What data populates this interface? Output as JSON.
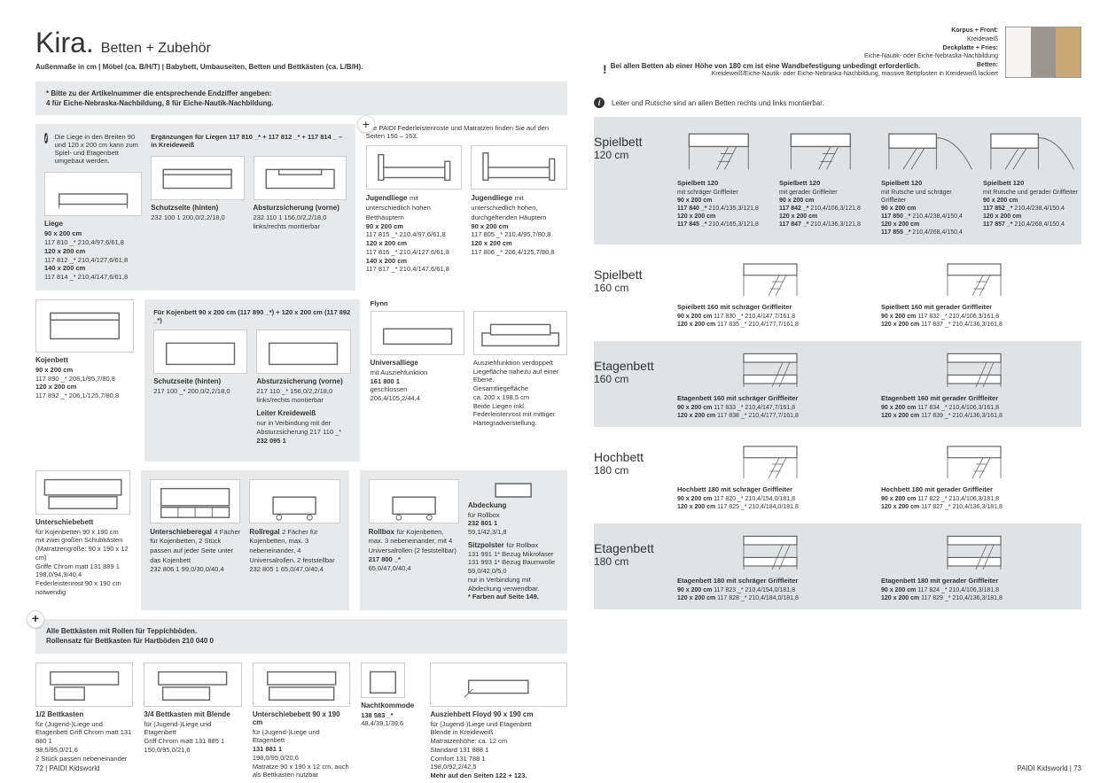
{
  "header": {
    "title": "Kira.",
    "subtitle": "Betten + Zubehör",
    "note": "Außenmaße in cm | Möbel (ca. B/H/T) | Babybett, Umbauseiten, Betten und Bettkästen (ca. L/B/H)."
  },
  "warning": "Bei allen Betten ab einer Höhe von 180 cm ist eine Wandbefestigung unbedingt erforderlich.",
  "topright": {
    "korpus_label": "Korpus + Front:",
    "korpus": "Kreideweiß",
    "deck_label": "Deckplatte + Fries:",
    "deck": "Eiche-Nautik- oder Eiche-Nebraska-Nachbildung",
    "betten_label": "Betten:",
    "betten": "Kreideweiß/Eiche-Nautik- oder Eiche-Nebraska-Nachbildung, massive Bettpfosten in Kreideweiß lackiert",
    "swatch_colors": [
      "#f5f4f0",
      "#9a9590",
      "#c9a876"
    ]
  },
  "artikel_note": "* Bitte zu der Artikelnummer die entsprechende Endziffer angeben:",
  "artikel_note2": "4 für Eiche-Nebraska-Nachbildung, 8 für Eiche-Nautik-Nachbildung.",
  "info1": "Die Liege in den Breiten 90 und 120 x 200 cm kann zum Spiel- und Etagenbett umgebaut werden.",
  "erg_title": "Ergänzungen für Liegen 117 810 _* + 117 812 _* + 117 814 _ – in Kreideweiß",
  "federleisten": "Alle PAIDI Federleistenroste und Matratzen finden Sie auf den Seiten 150 – 163.",
  "right_intro": "Leiter und Rutsche sind an allen Betten rechts und links montierbar.",
  "products": {
    "liege": {
      "title": "Liege",
      "l1": "90 x 200 cm",
      "l2": "117 810 _*  210,4/97,6/61,8",
      "l3": "120 x 200 cm",
      "l4": "117 812 _*  210,4/127,6/61,8",
      "l5": "140 x 200 cm",
      "l6": "117 814 _*  210,4/147,6/61,8"
    },
    "schutz1": {
      "title": "Schutzseite (hinten)",
      "l1": "232 100 1  200,0/2,2/18,0"
    },
    "absturz1": {
      "title": "Absturzsicherung (vorne)",
      "l1": "232 110 1  156,0/2,2/18,0",
      "l2": "links/rechts montierbar"
    },
    "jugend1": {
      "title": "Jugendliege",
      "sub": "mit unterschiedlich hohen Betthäuptern",
      "l1": "90 x 200 cm",
      "l2": "117 815 _*  210,4/97,6/61,8",
      "l3": "120 x 200 cm",
      "l4": "117 816 _*  210,4/127,6/61,8",
      "l5": "140 x 200 cm",
      "l6": "117 817 _*  210,4/147,6/61,8"
    },
    "jugend2": {
      "title": "Jugendliege",
      "sub": "mit unterschiedlich hohen, durchgehenden Häuptern",
      "l1": "90 x 200 cm",
      "l2": "117 805 _*  210,4/95,7/80,8",
      "l3": "120 x 200 cm",
      "l4": "117 806 _*  206,4/125,7/80,8"
    },
    "kojenbett": {
      "title": "Kojenbett",
      "l1": "90 x 200 cm",
      "l2": "117 890 _*  206,1/95,7/80,8",
      "l3": "120 x 200 cm",
      "l4": "117 892 _*  206,1/125,7/80,8"
    },
    "kojen_header": "Für Kojenbett 90 x 200 cm (117 890 _*) + 120 x 200 cm (117 892 _*)",
    "schutz2": {
      "title": "Schutzseite (hinten)",
      "l1": "217 100 _*  200,0/2,2/18,0"
    },
    "absturz2": {
      "title": "Absturzsicherung (vorne)",
      "l1": "217 110 _*  156,0/2,2/18,0",
      "l2": "links/rechts montierbar"
    },
    "leiter": {
      "title": "Leiter Kreideweiß",
      "l1": "nur in Verbindung mit der Absturzsicherung 217 110 _*",
      "l2": "232 095 1"
    },
    "flynn": "Flynn",
    "universal": {
      "title": "Universalliege",
      "l1": "mit Ausziehfunktion",
      "l2": "161 800 1",
      "l3": "geschlossen",
      "l4": "206,4/105,2/44,4"
    },
    "ausziehf": {
      "l1": "Ausziehfunktion verdoppelt Liegefläche nahezu auf einer Ebene.",
      "l2": "Gesamtliegefläche",
      "l3": "ca. 200 x 198,5 cm",
      "l4": "Beide Liegen inkl. Federleistenrost mit mittiger Härtegradverstellung."
    },
    "unterschiebe": {
      "title": "Unterschiebebett",
      "l1": "für Kojenbetten  90 x 190 cm",
      "l2": "mit zwei großen Schubkästen (Matratzengröße: 90 x 190 x 12 cm)",
      "l3": "Griffe Chrom matt  131 889 1",
      "l4": "198,0/94,9/40,4",
      "l5": "Federleistenrost 90 x 190 cm notwendig"
    },
    "unterregal": {
      "title": "Unterschieberegal",
      "l1": "4 Fächer für Kojenbetten, 2 Stück passen auf jeder Seite unter das Kojenbett",
      "l2": "232 806 1  99,0/30,0/40,4"
    },
    "rollregal": {
      "title": "Rollregal",
      "l1": "2 Fächer für Kojenbetten, max. 3 nebeneinander, 4 Universalrollen, 2 feststellbar",
      "l2": "232 805 1  65,0/47,0/40,4"
    },
    "rollbox": {
      "title": "Rollbox",
      "l1": "für Kojenbetten, max. 3 nebeneinander, mit 4 Universalrollen (2 feststellbar)",
      "l2": "217 800 _*",
      "l3": "65,0/47,0/40,4"
    },
    "abdeckung": {
      "title": "Abdeckung",
      "l1": "für Rollbox",
      "l2": "232 801 1",
      "l3": "59,1/42,3/1,8"
    },
    "sitzpolster": {
      "title": "Sitzpolster",
      "l1": "für Rollbox",
      "l2": "131 991 1*  Bezug Mikrofaser",
      "l3": "131 993 1*  Bezug Baumwolle",
      "l4": "59,0/42,0/5,0",
      "l5": "nur in Verbindung mit Abdeckung verwendbar.",
      "l6": "* Farben auf Seite 149."
    },
    "bettkasten_note": "Alle Bettkästen mit Rollen für Teppichböden.",
    "rollensatz": "Rollensatz für Bettkasten für Hartböden 210 040 0",
    "bk12": {
      "title": "1/2 Bettkasten",
      "l1": "für (Jugend-)Liege und Etagenbett Griff Chrom matt  131 880 1",
      "l2": "98,5/95,0/21,6",
      "l3": "2 Stück passen nebeneinander"
    },
    "bk34": {
      "title": "3/4 Bettkasten mit Blende",
      "l1": "für (Jugend-)Liege und Etagenbett",
      "l2": "Griff Chrom matt  131 885 1",
      "l3": "150,0/95,0/21,6"
    },
    "ubett": {
      "title": "Unterschiebebett 90 x 190 cm",
      "l1": "für (Jugend-)Liege und Etagenbett",
      "l2": "131 881 1",
      "l3": "198,0/95,0/20,6",
      "l4": "Matratze 90 x 190 x 12 cm, auch als Bettkasten nutzbar"
    },
    "nacht": {
      "title": "Nachtkommode",
      "l1": "138 583 _*",
      "l2": "48,4/39,1/39,6"
    },
    "floyd": {
      "title": "Ausziehbett Floyd 90 x 190 cm",
      "l1": "für (Jugend-)Liege und Etagenbett",
      "l2": "Blende in Kreideweiß",
      "l3": "Matratzenhöhe: ca. 12 cm",
      "l4": "Standard  131 888 1",
      "l5": "Comfort  131 788 1",
      "l6": "198,0/92,2/42,5",
      "l7": "Mehr auf den Seiten 122 + 123."
    }
  },
  "categories": [
    {
      "title": "Spielbett",
      "sub": "120 cm",
      "shaded": true,
      "img_h": "tall",
      "items": [
        {
          "title": "Spielbett 120",
          "sub": "mit schräger Griffleiter",
          "l1": "90 x 200 cm",
          "l2": "117 840 _*  210,4/135,3/121,8",
          "l3": "120 x 200 cm",
          "l4": "117 845 _*  210,4/165,3/121,8"
        },
        {
          "title": "Spielbett 120",
          "sub": "mit gerader Griffleiter",
          "l1": "90 x 200 cm",
          "l2": "117 842 _*  210,4/106,3/121,8",
          "l3": "120 x 200 cm",
          "l4": "117 847 _*  210,4/136,3/121,8"
        },
        {
          "title": "Spielbett 120",
          "sub": "mit Rutsche und schräger Griffleiter",
          "l1": "90 x 200 cm",
          "l2": "117 850 _*  210,4/238,4/150,4",
          "l3": "120 x 200 cm",
          "l4": "117 855 _*  210,4/268,4/150,4"
        },
        {
          "title": "Spielbett 120",
          "sub": "mit Rutsche und gerader Griffleiter",
          "l1": "90 x 200 cm",
          "l2": "117 852 _*  210,4/238,4/150,4",
          "l3": "120 x 200 cm",
          "l4": "117 857 _*  210,4/268,4/150,4"
        }
      ]
    },
    {
      "title": "Spielbett",
      "sub": "160 cm",
      "shaded": false,
      "items": [
        {
          "title": "Spielbett 160 mit schräger Griffleiter",
          "l1": "90 x 200 cm  117 830 _*  210,4/147,7/161,8",
          "l2": "120 x 200 cm  117 835 _*  210,4/177,7/161,8"
        },
        {
          "title": "Spielbett 160 mit gerader Griffleiter",
          "l1": "90 x 200 cm  117 832 _*  210,4/106,3/161,8",
          "l2": "120 x 200 cm  117 837 _*  210,4/136,3/161,8"
        }
      ]
    },
    {
      "title": "Etagenbett",
      "sub": "160 cm",
      "shaded": true,
      "items": [
        {
          "title": "Etagenbett 160 mit schräger Griffleiter",
          "l1": "90 x 200 cm  117 833 _*  210,4/147,7/161,8",
          "l2": "120 x 200 cm  117 838 _*  210,4/177,7/161,8"
        },
        {
          "title": "Etagenbett 160 mit gerader Griffleiter",
          "l1": "90 x 200 cm  117 834 _*  210,4/106,3/161,8",
          "l2": "120 x 200 cm  117 839 _*  210,4/136,3/161,8"
        }
      ]
    },
    {
      "title": "Hochbett",
      "sub": "180 cm",
      "shaded": false,
      "items": [
        {
          "title": "Hochbett 180 mit schräger Griffleiter",
          "l1": "90 x 200 cm  117 820 _*  210,4/154,0/181,8",
          "l2": "120 x 200 cm  117 825 _*  210,4/184,0/181,8"
        },
        {
          "title": "Hochbett 180 mit gerader Griffleiter",
          "l1": "90 x 200 cm  117 822 _*  210,4/106,3/181,8",
          "l2": "120 x 200 cm  117 827 _*  210,4/136,3/181,8"
        }
      ]
    },
    {
      "title": "Etagenbett",
      "sub": "180 cm",
      "shaded": true,
      "items": [
        {
          "title": "Etagenbett 180 mit schräger Griffleiter",
          "l1": "90 x 200 cm  117 823 _*  210,4/154,0/181,8",
          "l2": "120 x 200 cm  117 828 _*  210,4/184,0/181,8"
        },
        {
          "title": "Etagenbett 180 mit gerader Griffleiter",
          "l1": "90 x 200 cm  117 824 _*  210,4/106,3/181,8",
          "l2": "120 x 200 cm  117 829 _*  210,4/136,3/181,8"
        }
      ]
    }
  ],
  "footer": {
    "left": "72  |  PAIDI Kidsworld",
    "right": "PAIDI Kidsworld  |  73"
  }
}
